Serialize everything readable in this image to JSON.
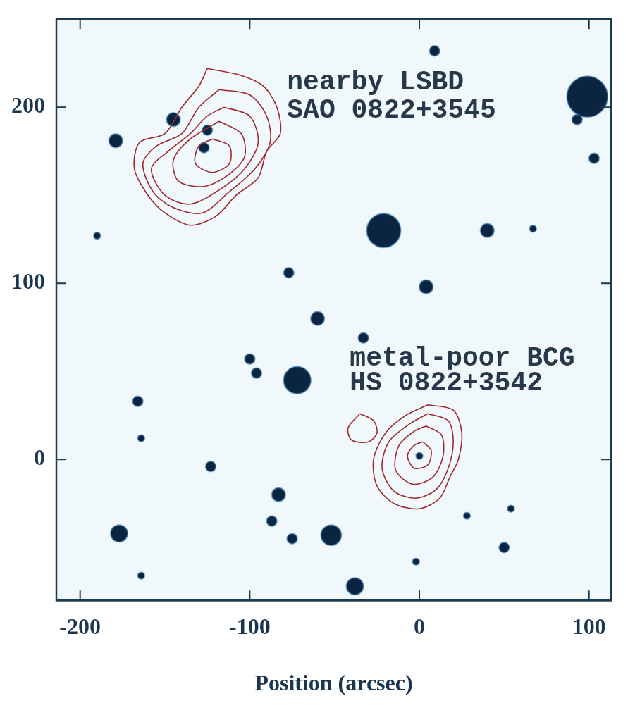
{
  "chart_data": {
    "type": "scatter",
    "x_label": "Position (arcsec)",
    "xlim": [
      -214,
      113
    ],
    "ylim": [
      -80,
      250
    ],
    "xticks": [
      -200,
      -100,
      0,
      100
    ],
    "yticks": [
      0,
      100,
      200
    ],
    "grid": false,
    "annotations": [
      {
        "text": "nearby LSBD",
        "x": -78,
        "y": 214
      },
      {
        "text": "SAO 0822+3545",
        "x": -78,
        "y": 198
      },
      {
        "text": "metal-poor BCG",
        "x": -41,
        "y": 57
      },
      {
        "text": "HS 0822+3542",
        "x": -41,
        "y": 43
      }
    ],
    "sources": {
      "color": "#0b2440",
      "x": [
        99,
        -21,
        -72,
        -52,
        -177,
        -179,
        40,
        4,
        -60,
        -33,
        -100,
        -96,
        -166,
        -123,
        -83,
        -87,
        -75,
        -38,
        50,
        -164,
        9,
        -77,
        103,
        93,
        -190,
        -145,
        -125,
        -127,
        67,
        28,
        54,
        -2,
        -164,
        0
      ],
      "y": [
        206,
        130,
        45,
        -43,
        -42,
        181,
        130,
        98,
        80,
        69,
        57,
        49,
        33,
        -4,
        -20,
        -35,
        -45,
        -72,
        -50,
        -66,
        232,
        106,
        171,
        193,
        127,
        193,
        187,
        177,
        131,
        -32,
        -28,
        -58,
        12,
        2
      ],
      "size": [
        12,
        10,
        8,
        6,
        5,
        4,
        4,
        4,
        4,
        3,
        3,
        3,
        3,
        3,
        4,
        3,
        3,
        5,
        3,
        2,
        3,
        3,
        3,
        3,
        2,
        4,
        3,
        3,
        2,
        2,
        2,
        2,
        2,
        2
      ]
    },
    "contours": {
      "color": "#a0282d",
      "lines": [
        {
          "x": [
            -125,
            -105,
            -92,
            -84,
            -82,
            -90,
            -95,
            -108,
            -120,
            -135,
            -150,
            -160,
            -168,
            -165,
            -150,
            -140,
            -130,
            -125
          ],
          "y": [
            222,
            218,
            212,
            200,
            185,
            175,
            160,
            150,
            138,
            133,
            140,
            150,
            165,
            180,
            185,
            200,
            212,
            222
          ]
        },
        {
          "x": [
            -118,
            -100,
            -90,
            -88,
            -97,
            -112,
            -128,
            -145,
            -157,
            -163,
            -155,
            -140,
            -130,
            -118
          ],
          "y": [
            210,
            207,
            195,
            180,
            165,
            152,
            140,
            143,
            152,
            168,
            178,
            185,
            200,
            210
          ]
        },
        {
          "x": [
            -115,
            -100,
            -95,
            -103,
            -118,
            -135,
            -150,
            -158,
            -148,
            -135,
            -125,
            -115
          ],
          "y": [
            200,
            195,
            180,
            165,
            153,
            145,
            150,
            165,
            175,
            185,
            195,
            200
          ]
        },
        {
          "x": [
            -118,
            -105,
            -103,
            -112,
            -127,
            -142,
            -145,
            -135,
            -118
          ],
          "y": [
            192,
            185,
            172,
            162,
            155,
            158,
            170,
            182,
            192
          ]
        },
        {
          "x": [
            -122,
            -112,
            -112,
            -122,
            -132,
            -130,
            -122
          ],
          "y": [
            182,
            178,
            168,
            163,
            168,
            178,
            182
          ]
        },
        {
          "x": [
            5,
            20,
            25,
            23,
            18,
            12,
            0,
            -15,
            -25,
            -27,
            -20,
            -8,
            5
          ],
          "y": [
            31,
            28,
            15,
            0,
            -10,
            -22,
            -28,
            -25,
            -15,
            0,
            15,
            25,
            31
          ]
        },
        {
          "x": [
            5,
            17,
            20,
            17,
            10,
            -2,
            -15,
            -22,
            -18,
            -6,
            5
          ],
          "y": [
            26,
            22,
            10,
            -5,
            -17,
            -22,
            -18,
            -5,
            10,
            20,
            26
          ]
        },
        {
          "x": [
            4,
            13,
            14,
            8,
            -4,
            -14,
            -12,
            -3,
            4
          ],
          "y": [
            19,
            14,
            2,
            -10,
            -14,
            -6,
            8,
            16,
            19
          ]
        },
        {
          "x": [
            2,
            7,
            5,
            -3,
            -7,
            -3,
            2
          ],
          "y": [
            10,
            5,
            -3,
            -5,
            2,
            8,
            10
          ]
        },
        {
          "x": [
            -35,
            -27,
            -25,
            -30,
            -40,
            -42,
            -35
          ],
          "y": [
            26,
            22,
            15,
            10,
            11,
            18,
            26
          ]
        }
      ]
    }
  }
}
